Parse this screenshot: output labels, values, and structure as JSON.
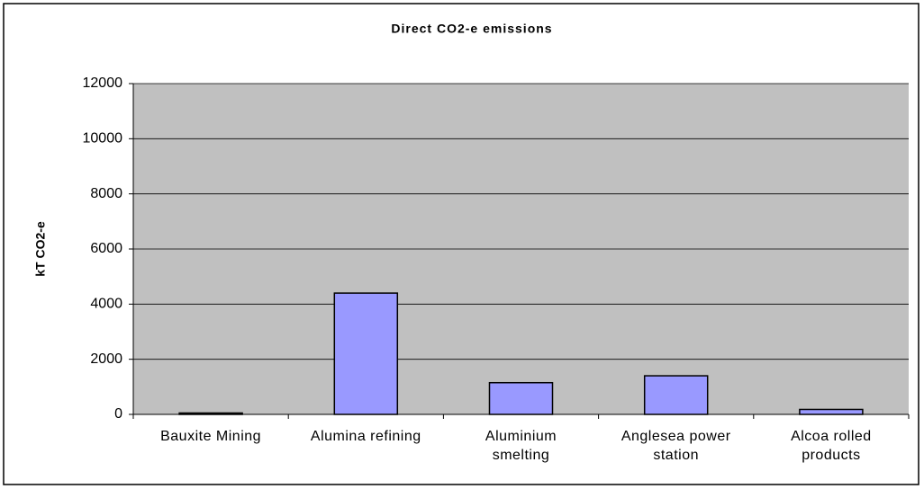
{
  "chart_data": {
    "type": "bar",
    "title": "Direct CO2-e emissions",
    "y_label": "kT CO2-e",
    "categories": [
      "Bauxite Mining",
      "Alumina refining",
      "Aluminium smelting",
      "Anglesea power station",
      "Alcoa rolled products"
    ],
    "values": [
      50,
      4400,
      1150,
      1400,
      180
    ],
    "color": "#9999ff",
    "plot_background": "#c0c0c0",
    "ylim": [
      0,
      12000
    ],
    "yticks": [
      0,
      2000,
      4000,
      6000,
      8000,
      10000,
      12000
    ],
    "grid": true
  }
}
